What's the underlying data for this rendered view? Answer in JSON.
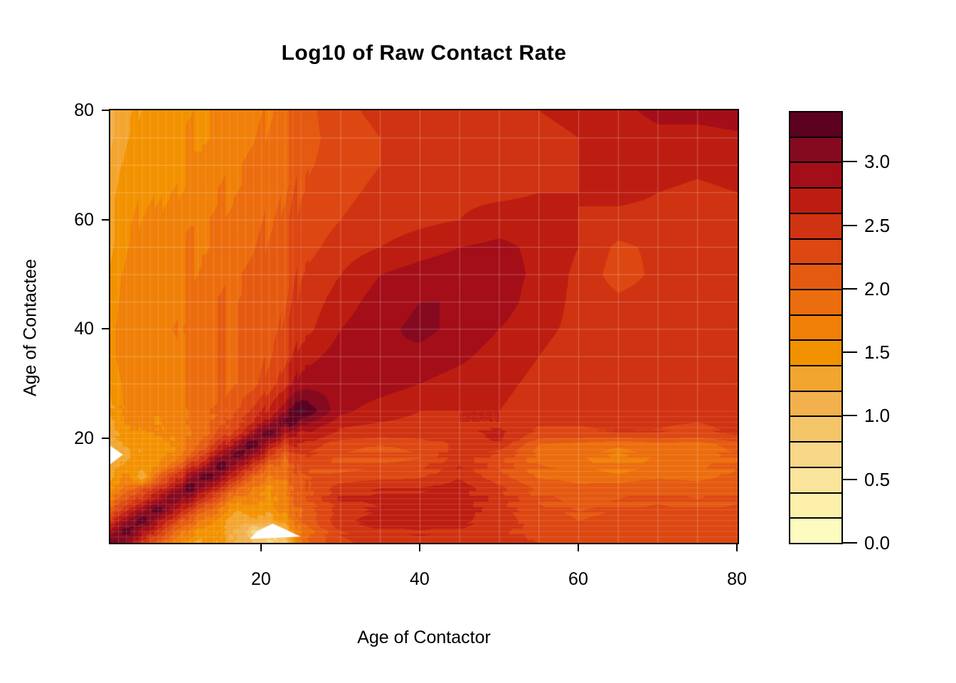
{
  "page": {
    "background": "#FFFFFF"
  },
  "chart_data": {
    "type": "heatmap",
    "variant": "filled-contour",
    "title": "Log10 of Raw Contact Rate",
    "xlabel": "Age of Contactor",
    "ylabel": "Age of Contactee",
    "x_range": [
      1,
      80
    ],
    "y_range": [
      1,
      80
    ],
    "x_ticks": [
      20,
      40,
      60,
      80
    ],
    "y_ticks": [
      20,
      40,
      60,
      80
    ],
    "grid_on": true,
    "legend_position": "right",
    "levels": {
      "min": 0.0,
      "max": 3.4,
      "step": 0.2
    },
    "overflow_color": "#4A1132",
    "hole_color": "#FFFFFF",
    "palette": [
      "#FEFBC1",
      "#FDF0AB",
      "#FBE49C",
      "#F8D789",
      "#F5C569",
      "#F2B14E",
      "#F3A62F",
      "#F39200",
      "#F08008",
      "#EC6D0D",
      "#E55A11",
      "#DD4712",
      "#D03311",
      "#BD1D11",
      "#A40E18",
      "#850A20",
      "#5D0121"
    ],
    "legend_ticks": [
      {
        "value": 0.0,
        "label": "0.0"
      },
      {
        "value": 0.5,
        "label": "0.5"
      },
      {
        "value": 1.0,
        "label": "1.0"
      },
      {
        "value": 1.5,
        "label": "1.5"
      },
      {
        "value": 2.0,
        "label": "2.0"
      },
      {
        "value": 2.5,
        "label": "2.5"
      },
      {
        "value": 3.0,
        "label": "3.0"
      }
    ],
    "mesh": {
      "fine_from": 2,
      "fine_to": 25,
      "fine_step": 1,
      "coarse_from": 30,
      "coarse_to": 75,
      "coarse_step": 5,
      "fine_color": "rgba(255,255,255,0.16)",
      "coarse_color": "rgba(255,255,255,0.28)"
    },
    "grid": {
      "ages": [
        1,
        3,
        5,
        7,
        9,
        11,
        13,
        15,
        17,
        19,
        21,
        23,
        25,
        30,
        35,
        40,
        45,
        50,
        55,
        60,
        65,
        70,
        75,
        80
      ],
      "values": [
        [
          3.3,
          2.9,
          2.5,
          2.1,
          1.8,
          1.5,
          1.4,
          1.3,
          1.2,
          1.0,
          0.85,
          0.9,
          1.9,
          2.3,
          2.45,
          2.5,
          2.45,
          2.4,
          2.35,
          2.3,
          2.3,
          2.35,
          2.3,
          2.3
        ],
        [
          2.9,
          3.3,
          2.9,
          2.5,
          2.1,
          1.7,
          1.5,
          1.35,
          1.2,
          0.7,
          0.7,
          1.1,
          1.8,
          2.4,
          2.55,
          2.6,
          2.55,
          2.45,
          2.3,
          2.25,
          2.3,
          2.3,
          2.25,
          2.35
        ],
        [
          2.5,
          2.9,
          3.3,
          2.9,
          2.5,
          2.0,
          1.7,
          1.5,
          1.15,
          1.3,
          1.35,
          1.6,
          2.0,
          2.55,
          2.7,
          2.7,
          2.65,
          2.5,
          2.3,
          2.2,
          2.25,
          2.3,
          2.25,
          2.3
        ],
        [
          2.1,
          2.5,
          2.9,
          3.3,
          2.9,
          2.5,
          2.0,
          1.7,
          1.4,
          1.45,
          1.5,
          1.7,
          2.0,
          2.45,
          2.6,
          2.65,
          2.7,
          2.45,
          2.25,
          2.15,
          2.2,
          2.25,
          2.2,
          2.25
        ],
        [
          1.8,
          2.1,
          2.5,
          2.9,
          3.3,
          2.9,
          2.5,
          2.0,
          1.7,
          1.6,
          1.55,
          1.8,
          2.1,
          2.6,
          2.7,
          2.7,
          2.7,
          2.5,
          2.2,
          2.1,
          2.15,
          2.2,
          2.15,
          2.2
        ],
        [
          1.5,
          1.8,
          2.1,
          2.5,
          2.9,
          3.35,
          2.9,
          2.5,
          2.0,
          1.7,
          1.6,
          1.8,
          2.1,
          2.5,
          2.6,
          2.6,
          2.7,
          2.45,
          2.15,
          2.05,
          2.1,
          2.15,
          2.1,
          2.2
        ],
        [
          1.4,
          1.6,
          1.2,
          2.0,
          2.5,
          2.9,
          3.35,
          2.9,
          2.5,
          2.0,
          1.8,
          1.9,
          2.2,
          2.3,
          2.35,
          2.4,
          2.6,
          2.3,
          2.0,
          1.95,
          1.9,
          2.0,
          1.95,
          2.1
        ],
        [
          1.3,
          1.45,
          1.5,
          1.6,
          2.0,
          2.5,
          2.9,
          3.35,
          2.9,
          2.5,
          2.0,
          2.0,
          2.3,
          2.2,
          2.25,
          2.3,
          2.55,
          2.25,
          1.95,
          1.9,
          1.75,
          1.9,
          1.9,
          2.05
        ],
        [
          0.9,
          1.3,
          1.45,
          1.5,
          1.7,
          2.0,
          2.5,
          2.9,
          3.35,
          2.9,
          2.5,
          2.1,
          2.4,
          2.2,
          2.15,
          2.2,
          2.5,
          2.3,
          1.9,
          1.85,
          1.7,
          1.85,
          1.85,
          2.0
        ],
        [
          1.2,
          1.4,
          1.5,
          1.55,
          1.65,
          1.8,
          2.1,
          2.5,
          2.9,
          3.35,
          2.9,
          2.5,
          2.6,
          2.25,
          2.2,
          2.25,
          2.45,
          2.55,
          2.0,
          1.95,
          1.85,
          1.95,
          1.9,
          2.1
        ],
        [
          1.3,
          1.5,
          1.6,
          1.6,
          1.7,
          1.8,
          2.0,
          2.2,
          2.5,
          2.9,
          3.35,
          2.9,
          2.8,
          2.5,
          2.45,
          2.45,
          2.5,
          2.6,
          2.3,
          2.3,
          2.35,
          2.35,
          2.3,
          2.4
        ],
        [
          1.35,
          1.55,
          1.65,
          1.65,
          1.7,
          1.8,
          1.95,
          2.1,
          2.3,
          2.6,
          2.9,
          3.35,
          3.1,
          2.7,
          2.6,
          2.55,
          2.6,
          2.6,
          2.45,
          2.45,
          2.5,
          2.45,
          2.4,
          2.5
        ],
        [
          1.4,
          1.6,
          1.7,
          1.7,
          1.75,
          1.8,
          1.9,
          2.0,
          2.2,
          2.4,
          2.7,
          3.0,
          3.45,
          2.85,
          2.7,
          2.6,
          2.6,
          2.6,
          2.5,
          2.5,
          2.55,
          2.5,
          2.45,
          2.55
        ],
        [
          1.45,
          1.6,
          1.7,
          1.75,
          1.8,
          1.85,
          1.9,
          1.95,
          2.0,
          2.1,
          2.3,
          2.6,
          2.9,
          2.95,
          2.9,
          2.8,
          2.7,
          2.65,
          2.55,
          2.5,
          2.55,
          2.5,
          2.45,
          2.5
        ],
        [
          1.5,
          1.65,
          1.75,
          1.8,
          1.8,
          1.85,
          1.9,
          1.95,
          2.0,
          2.05,
          2.2,
          2.4,
          2.7,
          2.9,
          3.0,
          2.95,
          2.85,
          2.7,
          2.6,
          2.5,
          2.5,
          2.5,
          2.45,
          2.5
        ],
        [
          1.5,
          1.65,
          1.75,
          1.8,
          1.85,
          1.9,
          1.9,
          1.95,
          2.0,
          2.05,
          2.15,
          2.3,
          2.5,
          2.8,
          2.95,
          3.05,
          2.95,
          2.8,
          2.65,
          2.55,
          2.5,
          2.5,
          2.45,
          2.55
        ],
        [
          1.5,
          1.6,
          1.7,
          1.75,
          1.8,
          1.85,
          1.9,
          1.95,
          2.0,
          2.05,
          2.1,
          2.25,
          2.45,
          2.7,
          2.9,
          3.0,
          3.0,
          2.9,
          2.7,
          2.55,
          2.45,
          2.5,
          2.45,
          2.5
        ],
        [
          1.45,
          1.6,
          1.7,
          1.75,
          1.8,
          1.8,
          1.85,
          1.9,
          1.95,
          2.0,
          2.1,
          2.2,
          2.4,
          2.6,
          2.8,
          2.9,
          2.95,
          2.9,
          2.75,
          2.55,
          2.3,
          2.45,
          2.4,
          2.5
        ],
        [
          1.4,
          1.55,
          1.65,
          1.7,
          1.75,
          1.8,
          1.8,
          1.85,
          1.9,
          1.95,
          2.05,
          2.15,
          2.3,
          2.5,
          2.6,
          2.7,
          2.8,
          2.85,
          2.75,
          2.6,
          2.35,
          2.45,
          2.45,
          2.5
        ],
        [
          1.35,
          1.5,
          1.6,
          1.65,
          1.7,
          1.75,
          1.75,
          1.8,
          1.85,
          1.9,
          2.0,
          2.1,
          2.25,
          2.4,
          2.5,
          2.55,
          2.6,
          2.7,
          2.7,
          2.6,
          2.55,
          2.55,
          2.5,
          2.55
        ],
        [
          1.3,
          1.45,
          1.55,
          1.6,
          1.65,
          1.7,
          1.7,
          1.75,
          1.8,
          1.85,
          1.95,
          2.05,
          2.2,
          2.35,
          2.45,
          2.5,
          2.55,
          2.55,
          2.6,
          2.6,
          2.65,
          2.6,
          2.55,
          2.6
        ],
        [
          1.25,
          1.4,
          1.5,
          1.55,
          1.6,
          1.65,
          1.65,
          1.7,
          1.75,
          1.8,
          1.9,
          2.0,
          2.15,
          2.3,
          2.4,
          2.45,
          2.5,
          2.5,
          2.55,
          2.6,
          2.7,
          2.7,
          2.65,
          2.7
        ],
        [
          1.2,
          1.35,
          1.45,
          1.5,
          1.55,
          1.6,
          1.6,
          1.65,
          1.7,
          1.75,
          1.85,
          1.95,
          2.1,
          2.3,
          2.4,
          2.45,
          2.5,
          2.5,
          2.55,
          2.6,
          2.7,
          2.75,
          2.7,
          2.75
        ],
        [
          1.15,
          1.3,
          1.4,
          1.45,
          1.5,
          1.55,
          1.6,
          1.6,
          1.65,
          1.7,
          1.8,
          1.9,
          2.1,
          2.35,
          2.45,
          2.5,
          2.55,
          2.55,
          2.6,
          2.65,
          2.75,
          2.85,
          2.9,
          2.95
        ]
      ]
    },
    "holes": [
      [
        [
          1,
          15.3
        ],
        [
          2.6,
          17.0
        ],
        [
          1,
          18.6
        ]
      ],
      [
        [
          18.6,
          1.6
        ],
        [
          25.0,
          2.0
        ],
        [
          21.5,
          4.4
        ],
        [
          19.5,
          3.0
        ]
      ]
    ]
  }
}
